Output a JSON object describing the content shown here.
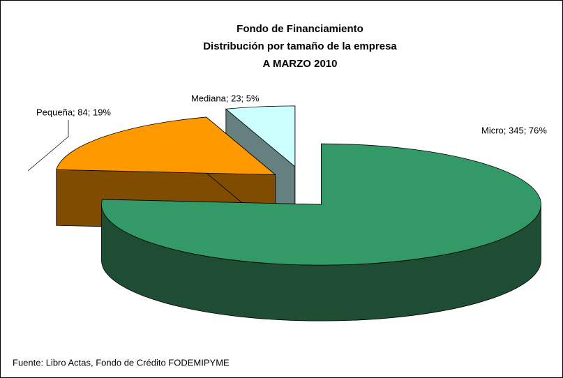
{
  "chart_data": {
    "type": "pie",
    "title": [
      "Fondo de Financiamiento",
      "Distribución por tamaño de la empresa",
      "A MARZO 2010"
    ],
    "categories": [
      "Micro",
      "Pequeña",
      "Mediana"
    ],
    "values": [
      345,
      84,
      23
    ],
    "value_labels": [
      "Micro; 345; 76%",
      "Pequeña; 84; 19%",
      "Mediana; 23; 5%"
    ],
    "colors": [
      "#339966",
      "#ff9900",
      "#ccffff"
    ],
    "side_colors": [
      "#1f4d33",
      "#804c00",
      "#668080"
    ],
    "source": "Fuente: Libro Actas, Fondo de Crédito FODEMIPYME"
  }
}
